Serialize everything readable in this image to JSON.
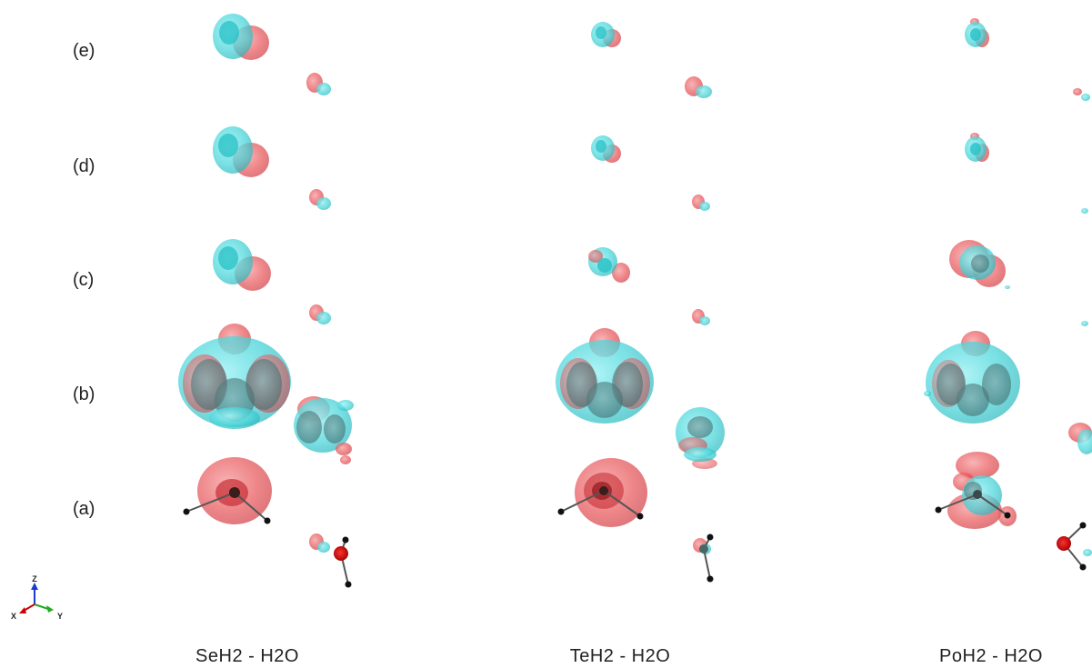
{
  "row_labels": [
    "(e)",
    "(d)",
    "(c)",
    "(b)",
    "(a)"
  ],
  "columns": [
    {
      "label": "SeH2 - H2O"
    },
    {
      "label": "TeH2 - H2O"
    },
    {
      "label": "PoH2 - H2O"
    }
  ],
  "axes_triad": {
    "z": "Z",
    "x": "X",
    "y": "Y"
  },
  "colors": {
    "negative_lobe": "#e8585c",
    "positive_lobe": "#4fd8dc",
    "inner_lobe": "#28c2c8",
    "atom": "#111111",
    "oxygen": "#d40000",
    "bond": "#555555",
    "axis_x": "#cc0000",
    "axis_y": "#22aa22",
    "axis_z": "#1a3ccc"
  }
}
